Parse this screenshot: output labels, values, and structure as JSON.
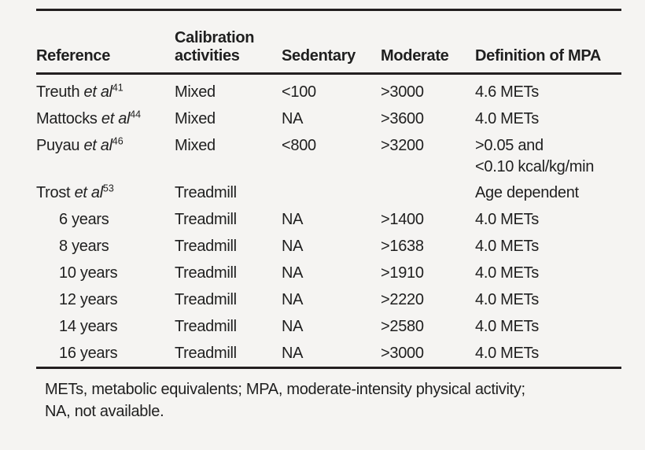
{
  "page": {
    "background_color": "#f5f4f2",
    "text_color": "#1f1f1f",
    "rule_color": "#231f20"
  },
  "table": {
    "columns": [
      {
        "label": "Reference",
        "lines": [
          "Reference"
        ]
      },
      {
        "label": "Calibration activities",
        "lines": [
          "Calibration",
          "activities"
        ]
      },
      {
        "label": "Sedentary",
        "lines": [
          "Sedentary"
        ]
      },
      {
        "label": "Moderate",
        "lines": [
          "Moderate"
        ]
      },
      {
        "label": "Definition of MPA",
        "lines": [
          "Definition of MPA"
        ]
      }
    ],
    "rows": [
      {
        "reference": {
          "text": "Treuth",
          "italic": "et al",
          "superscript": "41"
        },
        "indent": false,
        "tall": false,
        "calibration": "Mixed",
        "sedentary": "<100",
        "moderate": ">3000",
        "definition": [
          "4.6 METs"
        ]
      },
      {
        "reference": {
          "text": "Mattocks",
          "italic": "et al",
          "superscript": "44"
        },
        "indent": false,
        "tall": false,
        "calibration": "Mixed",
        "sedentary": "NA",
        "moderate": ">3600",
        "definition": [
          "4.0 METs"
        ]
      },
      {
        "reference": {
          "text": "Puyau",
          "italic": "et al",
          "superscript": "46"
        },
        "indent": false,
        "tall": true,
        "calibration": "Mixed",
        "sedentary": "<800",
        "moderate": ">3200",
        "definition": [
          ">0.05 and",
          "<0.10 kcal/kg/min"
        ]
      },
      {
        "reference": {
          "text": "Trost",
          "italic": "et al",
          "superscript": "53"
        },
        "indent": false,
        "tall": false,
        "calibration": "Treadmill",
        "sedentary": "",
        "moderate": "",
        "definition": [
          "Age dependent"
        ]
      },
      {
        "reference": {
          "text": "6 years"
        },
        "indent": true,
        "tall": false,
        "calibration": "Treadmill",
        "sedentary": "NA",
        "moderate": ">1400",
        "definition": [
          "4.0 METs"
        ]
      },
      {
        "reference": {
          "text": "8 years"
        },
        "indent": true,
        "tall": false,
        "calibration": "Treadmill",
        "sedentary": "NA",
        "moderate": ">1638",
        "definition": [
          "4.0 METs"
        ]
      },
      {
        "reference": {
          "text": "10 years"
        },
        "indent": true,
        "tall": false,
        "calibration": "Treadmill",
        "sedentary": "NA",
        "moderate": ">1910",
        "definition": [
          "4.0 METs"
        ]
      },
      {
        "reference": {
          "text": "12 years"
        },
        "indent": true,
        "tall": false,
        "calibration": "Treadmill",
        "sedentary": "NA",
        "moderate": ">2220",
        "definition": [
          "4.0 METs"
        ]
      },
      {
        "reference": {
          "text": "14 years"
        },
        "indent": true,
        "tall": false,
        "calibration": "Treadmill",
        "sedentary": "NA",
        "moderate": ">2580",
        "definition": [
          "4.0 METs"
        ]
      },
      {
        "reference": {
          "text": "16 years"
        },
        "indent": true,
        "tall": false,
        "calibration": "Treadmill",
        "sedentary": "NA",
        "moderate": ">3000",
        "definition": [
          "4.0 METs"
        ]
      }
    ],
    "footnote_lines": [
      "METs, metabolic equivalents; MPA, moderate-intensity physical activity;",
      "NA, not available."
    ]
  }
}
